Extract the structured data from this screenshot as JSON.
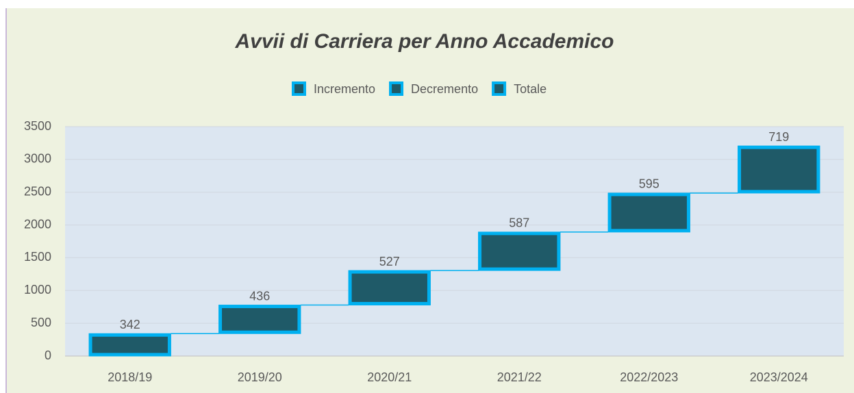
{
  "chart_data": {
    "type": "waterfall",
    "title": "Avvii di Carriera per Anno Accademico",
    "categories": [
      "2018/19",
      "2019/20",
      "2020/21",
      "2021/22",
      "2022/2023",
      "2023/2024"
    ],
    "series": [
      {
        "name": "Incremento",
        "color": "#1f5a68",
        "edgecolor": "#00b0f0",
        "values": [
          342,
          436,
          527,
          587,
          595,
          719
        ]
      },
      {
        "name": "Decremento",
        "color": "#1f5a68",
        "edgecolor": "#00b0f0",
        "values": [
          null,
          null,
          null,
          null,
          null,
          null
        ]
      },
      {
        "name": "Totale",
        "color": "#1f5a68",
        "edgecolor": "#00b0f0",
        "values": [
          null,
          null,
          null,
          null,
          null,
          null
        ]
      }
    ],
    "ylim": [
      0,
      3500
    ],
    "yticks": [
      0,
      500,
      1000,
      1500,
      2000,
      2500,
      3000,
      3500
    ],
    "grid": true,
    "legend": "top"
  }
}
